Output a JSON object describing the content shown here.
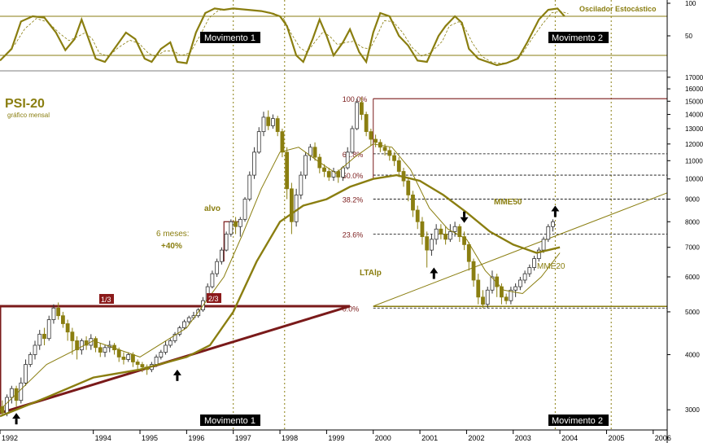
{
  "chart_data": {
    "type": "candlestick",
    "title": "PSI-20",
    "subtitle": "gráfico mensal",
    "oscillator_title": "Oscilador Estocástico",
    "scale": "log",
    "ylim": [
      2700,
      17500
    ],
    "xlim": [
      1992,
      2006.3
    ],
    "x_ticks": [
      "1992",
      "1994",
      "1995",
      "1996",
      "1997",
      "1998",
      "1999",
      "2000",
      "2001",
      "2002",
      "2003",
      "2004",
      "2005",
      "2006"
    ],
    "y_ticks": [
      3000,
      4000,
      5000,
      6000,
      7000,
      8000,
      9000,
      10000,
      11000,
      12000,
      13000,
      14000,
      15000,
      16000,
      17000
    ],
    "y_tick_labels": [
      "3000",
      "4000",
      "5000",
      "6000",
      "7000",
      "8000",
      "9000",
      "10000",
      "11000",
      "12000",
      "13000",
      "14000",
      "15000",
      "16000",
      "17000"
    ],
    "oscillator_ticks": [
      {
        "v": 100,
        "label": "100"
      },
      {
        "v": 50,
        "label": "50"
      }
    ],
    "oscillator_levels": [
      80,
      20
    ],
    "oscillator": [
      [
        1992.0,
        12
      ],
      [
        1992.25,
        30
      ],
      [
        1992.45,
        72
      ],
      [
        1992.7,
        80
      ],
      [
        1992.95,
        78
      ],
      [
        1993.2,
        55
      ],
      [
        1993.4,
        28
      ],
      [
        1993.6,
        45
      ],
      [
        1993.75,
        75
      ],
      [
        1993.9,
        45
      ],
      [
        1994.05,
        15
      ],
      [
        1994.25,
        10
      ],
      [
        1994.45,
        30
      ],
      [
        1994.7,
        55
      ],
      [
        1994.9,
        45
      ],
      [
        1995.1,
        15
      ],
      [
        1995.25,
        10
      ],
      [
        1995.45,
        30
      ],
      [
        1995.65,
        40
      ],
      [
        1995.8,
        10
      ],
      [
        1996.0,
        8
      ],
      [
        1996.2,
        55
      ],
      [
        1996.4,
        85
      ],
      [
        1996.6,
        92
      ],
      [
        1996.8,
        90
      ],
      [
        1997.0,
        92
      ],
      [
        1997.3,
        90
      ],
      [
        1997.6,
        88
      ],
      [
        1997.8,
        85
      ],
      [
        1998.0,
        80
      ],
      [
        1998.15,
        65
      ],
      [
        1998.35,
        20
      ],
      [
        1998.5,
        10
      ],
      [
        1998.7,
        45
      ],
      [
        1998.85,
        75
      ],
      [
        1999.0,
        50
      ],
      [
        1999.15,
        20
      ],
      [
        1999.35,
        40
      ],
      [
        1999.5,
        60
      ],
      [
        1999.7,
        25
      ],
      [
        1999.85,
        10
      ],
      [
        2000.0,
        55
      ],
      [
        2000.15,
        85
      ],
      [
        2000.35,
        80
      ],
      [
        2000.55,
        50
      ],
      [
        2000.75,
        35
      ],
      [
        2000.95,
        12
      ],
      [
        2001.15,
        10
      ],
      [
        2001.4,
        50
      ],
      [
        2001.55,
        65
      ],
      [
        2001.75,
        80
      ],
      [
        2001.9,
        70
      ],
      [
        2002.05,
        30
      ],
      [
        2002.25,
        15
      ],
      [
        2002.45,
        10
      ],
      [
        2002.65,
        5
      ],
      [
        2002.85,
        8
      ],
      [
        2003.1,
        15
      ],
      [
        2003.3,
        40
      ],
      [
        2003.55,
        75
      ],
      [
        2003.75,
        90
      ],
      [
        2003.95,
        92
      ],
      [
        2004.1,
        80
      ]
    ],
    "candles": [
      [
        1992.05,
        3050,
        2950,
        3150,
        2900
      ],
      [
        1992.15,
        2950,
        3200,
        3250,
        2900
      ],
      [
        1992.25,
        3200,
        3350,
        3400,
        3100
      ],
      [
        1992.35,
        3350,
        3150,
        3400,
        3050
      ],
      [
        1992.45,
        3150,
        3450,
        3550,
        3100
      ],
      [
        1992.55,
        3450,
        3800,
        3900,
        3400
      ],
      [
        1992.65,
        3800,
        4000,
        4050,
        3750
      ],
      [
        1992.75,
        4000,
        4200,
        4300,
        3900
      ],
      [
        1992.85,
        4200,
        4450,
        4550,
        4100
      ],
      [
        1992.95,
        4450,
        4350,
        4600,
        4200
      ],
      [
        1993.05,
        4350,
        4800,
        4900,
        4300
      ],
      [
        1993.15,
        4800,
        5100,
        5200,
        4700
      ],
      [
        1993.25,
        5100,
        4900,
        5250,
        4800
      ],
      [
        1993.35,
        4900,
        4700,
        5000,
        4600
      ],
      [
        1993.45,
        4700,
        4500,
        4800,
        4300
      ],
      [
        1993.55,
        4500,
        4300,
        4600,
        4000
      ],
      [
        1993.65,
        4300,
        4100,
        4400,
        3900
      ],
      [
        1993.75,
        4100,
        4300,
        4350,
        4000
      ],
      [
        1993.85,
        4300,
        4200,
        4400,
        4100
      ],
      [
        1993.95,
        4200,
        4350,
        4450,
        4100
      ],
      [
        1994.05,
        4350,
        4150,
        4400,
        4050
      ],
      [
        1994.15,
        4150,
        4050,
        4250,
        3950
      ],
      [
        1994.25,
        4050,
        4150,
        4200,
        3950
      ],
      [
        1994.35,
        4150,
        4200,
        4300,
        4050
      ],
      [
        1994.45,
        4200,
        4100,
        4250,
        4000
      ],
      [
        1994.55,
        4100,
        3950,
        4150,
        3850
      ],
      [
        1994.65,
        3950,
        3900,
        4050,
        3800
      ],
      [
        1994.75,
        3900,
        4000,
        4050,
        3850
      ],
      [
        1994.85,
        4000,
        3850,
        4050,
        3750
      ],
      [
        1994.95,
        3850,
        3800,
        3900,
        3700
      ],
      [
        1995.05,
        3800,
        3750,
        3850,
        3650
      ],
      [
        1995.15,
        3750,
        3700,
        3800,
        3600
      ],
      [
        1995.25,
        3700,
        3800,
        3850,
        3650
      ],
      [
        1995.35,
        3800,
        3950,
        4000,
        3750
      ],
      [
        1995.45,
        3950,
        4050,
        4100,
        3900
      ],
      [
        1995.55,
        4050,
        4200,
        4300,
        4000
      ],
      [
        1995.65,
        4200,
        4300,
        4350,
        4150
      ],
      [
        1995.75,
        4300,
        4450,
        4500,
        4250
      ],
      [
        1995.85,
        4450,
        4600,
        4650,
        4400
      ],
      [
        1995.95,
        4600,
        4750,
        4800,
        4550
      ],
      [
        1996.05,
        4750,
        4850,
        4900,
        4700
      ],
      [
        1996.15,
        4850,
        4900,
        5000,
        4800
      ],
      [
        1996.25,
        4900,
        5050,
        5100,
        4850
      ],
      [
        1996.35,
        5050,
        5300,
        5400,
        5000
      ],
      [
        1996.45,
        5300,
        5700,
        5800,
        5250
      ],
      [
        1996.55,
        5700,
        6100,
        6200,
        5650
      ],
      [
        1996.65,
        6100,
        6500,
        6600,
        6000
      ],
      [
        1996.75,
        6500,
        6900,
        7000,
        6400
      ],
      [
        1996.85,
        6900,
        7500,
        7600,
        6850
      ],
      [
        1996.95,
        7500,
        8000,
        8100,
        7400
      ],
      [
        1997.05,
        8000,
        7800,
        8200,
        7500
      ],
      [
        1997.15,
        7800,
        8100,
        8200,
        7400
      ],
      [
        1997.25,
        8100,
        9000,
        9100,
        8000
      ],
      [
        1997.35,
        9000,
        10200,
        10400,
        8900
      ],
      [
        1997.45,
        10200,
        11500,
        11800,
        10000
      ],
      [
        1997.55,
        11500,
        12800,
        13100,
        11400
      ],
      [
        1997.65,
        12800,
        13800,
        14200,
        12500
      ],
      [
        1997.75,
        13800,
        13200,
        14300,
        12900
      ],
      [
        1997.85,
        13200,
        13700,
        14000,
        13000
      ],
      [
        1997.95,
        13700,
        12800,
        13900,
        12500
      ],
      [
        1998.05,
        12800,
        11500,
        13000,
        11200
      ],
      [
        1998.15,
        11500,
        9500,
        11800,
        9000
      ],
      [
        1998.25,
        9500,
        8000,
        9800,
        7500
      ],
      [
        1998.35,
        8000,
        9200,
        9500,
        7800
      ],
      [
        1998.45,
        9200,
        10200,
        10400,
        9000
      ],
      [
        1998.55,
        10200,
        11300,
        11500,
        10000
      ],
      [
        1998.65,
        11300,
        11800,
        12000,
        11000
      ],
      [
        1998.75,
        11800,
        11200,
        12100,
        11000
      ],
      [
        1998.85,
        11200,
        10600,
        11400,
        10300
      ],
      [
        1998.95,
        10600,
        10400,
        10800,
        10100
      ],
      [
        1999.05,
        10400,
        10100,
        10600,
        9900
      ],
      [
        1999.15,
        10100,
        10400,
        10600,
        9900
      ],
      [
        1999.25,
        10400,
        10100,
        10500,
        9800
      ],
      [
        1999.35,
        10100,
        10600,
        10700,
        9900
      ],
      [
        1999.45,
        10600,
        11500,
        11800,
        10500
      ],
      [
        1999.55,
        11500,
        13000,
        13200,
        11400
      ],
      [
        1999.65,
        13000,
        14900,
        15200,
        12900
      ],
      [
        1999.75,
        14900,
        14000,
        15300,
        13600
      ],
      [
        1999.85,
        14000,
        12800,
        14200,
        12500
      ],
      [
        1999.95,
        12800,
        12300,
        13000,
        11900
      ],
      [
        2000.05,
        12300,
        12100,
        12600,
        11800
      ],
      [
        2000.15,
        12100,
        11800,
        12300,
        11500
      ],
      [
        2000.25,
        11800,
        11600,
        12000,
        11300
      ],
      [
        2000.35,
        11600,
        11300,
        11800,
        11000
      ],
      [
        2000.45,
        11300,
        11000,
        11500,
        10700
      ],
      [
        2000.55,
        11000,
        10400,
        11200,
        10100
      ],
      [
        2000.65,
        10400,
        9900,
        10600,
        9600
      ],
      [
        2000.75,
        9900,
        9200,
        10100,
        8900
      ],
      [
        2000.85,
        9200,
        8500,
        9400,
        8200
      ],
      [
        2000.95,
        8500,
        8000,
        8700,
        7700
      ],
      [
        2001.05,
        8000,
        7400,
        8200,
        7100
      ],
      [
        2001.15,
        7400,
        6900,
        7600,
        6300
      ],
      [
        2001.25,
        6900,
        7300,
        7500,
        6700
      ],
      [
        2001.35,
        7300,
        7700,
        7900,
        7100
      ],
      [
        2001.45,
        7700,
        7500,
        7900,
        7300
      ],
      [
        2001.55,
        7500,
        7300,
        7800,
        7100
      ],
      [
        2001.65,
        7300,
        7600,
        7900,
        7200
      ],
      [
        2001.75,
        7600,
        7800,
        8000,
        7400
      ],
      [
        2001.85,
        7800,
        7400,
        7900,
        7200
      ],
      [
        2001.95,
        7400,
        7100,
        7600,
        6900
      ],
      [
        2002.05,
        7100,
        6500,
        7200,
        6200
      ],
      [
        2002.15,
        6500,
        5900,
        6600,
        5700
      ],
      [
        2002.25,
        5900,
        5400,
        6100,
        5200
      ],
      [
        2002.35,
        5400,
        5200,
        5600,
        5100
      ],
      [
        2002.45,
        5200,
        5600,
        5700,
        5100
      ],
      [
        2002.55,
        5600,
        6000,
        6200,
        5500
      ],
      [
        2002.65,
        6000,
        5700,
        6100,
        5400
      ],
      [
        2002.75,
        5700,
        5400,
        5800,
        5200
      ],
      [
        2002.85,
        5400,
        5300,
        5500,
        5200
      ],
      [
        2002.95,
        5300,
        5600,
        5700,
        5200
      ],
      [
        2003.05,
        5600,
        5700,
        5800,
        5400
      ],
      [
        2003.15,
        5700,
        5900,
        6000,
        5600
      ],
      [
        2003.25,
        5900,
        6100,
        6200,
        5800
      ],
      [
        2003.35,
        6100,
        6300,
        6400,
        6000
      ],
      [
        2003.45,
        6300,
        6600,
        6700,
        6200
      ],
      [
        2003.55,
        6600,
        6900,
        7000,
        6500
      ],
      [
        2003.65,
        6900,
        7300,
        7400,
        6800
      ],
      [
        2003.75,
        7300,
        7800,
        7900,
        7200
      ],
      [
        2003.85,
        7800,
        8000,
        8100,
        7600
      ]
    ],
    "mme20": [
      [
        1992.0,
        3000
      ],
      [
        1993.0,
        3800
      ],
      [
        1994.0,
        4300
      ],
      [
        1995.0,
        3950
      ],
      [
        1996.0,
        4600
      ],
      [
        1996.8,
        6000
      ],
      [
        1997.2,
        7500
      ],
      [
        1997.6,
        9500
      ],
      [
        1998.0,
        11500
      ],
      [
        1998.4,
        11800
      ],
      [
        1998.8,
        11000
      ],
      [
        1999.2,
        10300
      ],
      [
        1999.6,
        11200
      ],
      [
        2000.0,
        12000
      ],
      [
        2000.4,
        11800
      ],
      [
        2000.8,
        10500
      ],
      [
        2001.2,
        8600
      ],
      [
        2001.6,
        7700
      ],
      [
        2002.0,
        7300
      ],
      [
        2002.4,
        6200
      ],
      [
        2002.8,
        5600
      ],
      [
        2003.2,
        5500
      ],
      [
        2003.6,
        6000
      ],
      [
        2004.0,
        6800
      ]
    ],
    "mme50": [
      [
        1992.0,
        2900
      ],
      [
        1993.0,
        3200
      ],
      [
        1994.0,
        3550
      ],
      [
        1995.0,
        3700
      ],
      [
        1996.0,
        3950
      ],
      [
        1996.5,
        4200
      ],
      [
        1997.0,
        5000
      ],
      [
        1997.5,
        6500
      ],
      [
        1998.0,
        8000
      ],
      [
        1998.5,
        8700
      ],
      [
        1999.0,
        9000
      ],
      [
        1999.5,
        9600
      ],
      [
        2000.0,
        10000
      ],
      [
        2000.5,
        10200
      ],
      [
        2001.0,
        9900
      ],
      [
        2001.5,
        9200
      ],
      [
        2002.0,
        8400
      ],
      [
        2002.5,
        7600
      ],
      [
        2003.0,
        7100
      ],
      [
        2003.5,
        6800
      ],
      [
        2004.0,
        7000
      ]
    ],
    "fib_levels": [
      {
        "label": "100.0%",
        "value": 15200
      },
      {
        "label": "61.8%",
        "value": 11400
      },
      {
        "label": "50.0%",
        "value": 10200
      },
      {
        "label": "38.2%",
        "value": 9000
      },
      {
        "label": "23.6%",
        "value": 7500
      },
      {
        "label": "0.0%",
        "value": 5100
      }
    ],
    "annotations": {
      "alvo": "alvo",
      "six_months": "6 meses:",
      "plus40": "+40%",
      "mme50": "MME50",
      "mme20": "MME20",
      "ltalp": "LTAlp",
      "movimento1": "Movimento 1",
      "movimento2": "Movimento 2",
      "third1": "1/3",
      "third2": "2/3"
    },
    "triangle": {
      "apex_left": [
        1992.0,
        5150
      ],
      "bottom": [
        1992.0,
        2950
      ],
      "apex_right": [
        1999.5,
        5150
      ]
    },
    "trendline": {
      "from": [
        2000.0,
        5150
      ],
      "to": [
        2006.3,
        9300
      ]
    },
    "movimento_lines": [
      1997.0,
      1998.1,
      2003.9,
      2005.1
    ],
    "arrows_up": [
      [
        1992.35,
        2950
      ],
      [
        1995.8,
        3700
      ],
      [
        2001.3,
        6300
      ],
      [
        2003.9,
        8700
      ]
    ],
    "arrows_down": [
      [
        2001.95,
        7950
      ]
    ],
    "colors": {
      "olive": "#8a7e10",
      "brown": "#7a1a1a",
      "black": "#000000",
      "grid": "#999999"
    }
  }
}
